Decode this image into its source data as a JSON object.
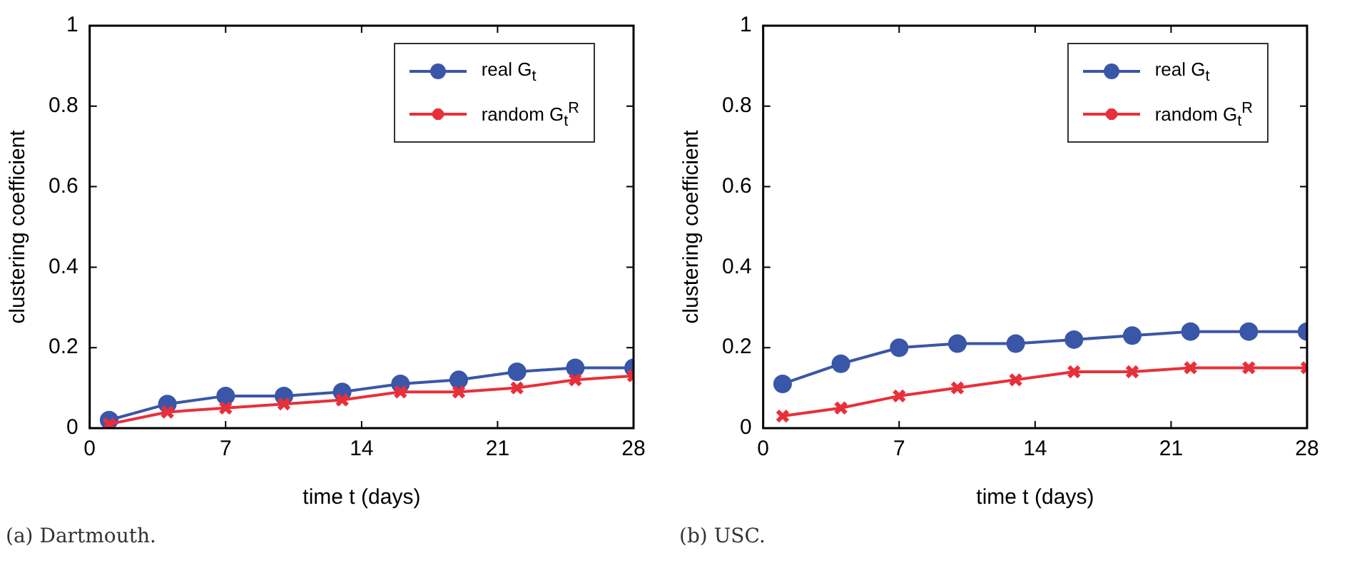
{
  "chart_data": [
    {
      "type": "line",
      "xlabel": "time t (days)",
      "ylabel": "clustering coefficient",
      "x": [
        1,
        4,
        7,
        10,
        13,
        16,
        19,
        22,
        25,
        28
      ],
      "xlim": [
        0,
        28
      ],
      "xticks": [
        0,
        7,
        14,
        21,
        28
      ],
      "ylim": [
        0,
        1
      ],
      "yticks": [
        0,
        0.2,
        0.4,
        0.6,
        0.8,
        1
      ],
      "grid": false,
      "legend": "top right",
      "annotations": [
        "(a) Dartmouth."
      ],
      "series": [
        {
          "name": "real G$_{t}$",
          "color": "#3a56a8",
          "marker": "circle",
          "values": [
            0.02,
            0.06,
            0.08,
            0.08,
            0.09,
            0.11,
            0.12,
            0.14,
            0.15,
            0.15
          ]
        },
        {
          "name": "random G$_{t}$$^{R}$",
          "color": "#e8303a",
          "marker": "cross",
          "values": [
            0.01,
            0.04,
            0.05,
            0.06,
            0.07,
            0.09,
            0.09,
            0.1,
            0.12,
            0.13
          ]
        }
      ]
    },
    {
      "type": "line",
      "xlabel": "time t (days)",
      "ylabel": "clustering coefficient",
      "x": [
        1,
        4,
        7,
        10,
        13,
        16,
        19,
        22,
        25,
        28
      ],
      "xlim": [
        0,
        28
      ],
      "xticks": [
        0,
        7,
        14,
        21,
        28
      ],
      "ylim": [
        0,
        1
      ],
      "yticks": [
        0,
        0.2,
        0.4,
        0.6,
        0.8,
        1
      ],
      "grid": false,
      "legend": "top right",
      "annotations": [
        "(b) USC."
      ],
      "series": [
        {
          "name": "real G$_{t}$",
          "color": "#3a56a8",
          "marker": "circle",
          "values": [
            0.11,
            0.16,
            0.2,
            0.21,
            0.21,
            0.22,
            0.23,
            0.24,
            0.24,
            0.24
          ]
        },
        {
          "name": "random G$_{t}$$^{R}$",
          "color": "#e8303a",
          "marker": "cross",
          "values": [
            0.03,
            0.05,
            0.08,
            0.1,
            0.12,
            0.14,
            0.14,
            0.15,
            0.15,
            0.15
          ]
        }
      ]
    }
  ]
}
